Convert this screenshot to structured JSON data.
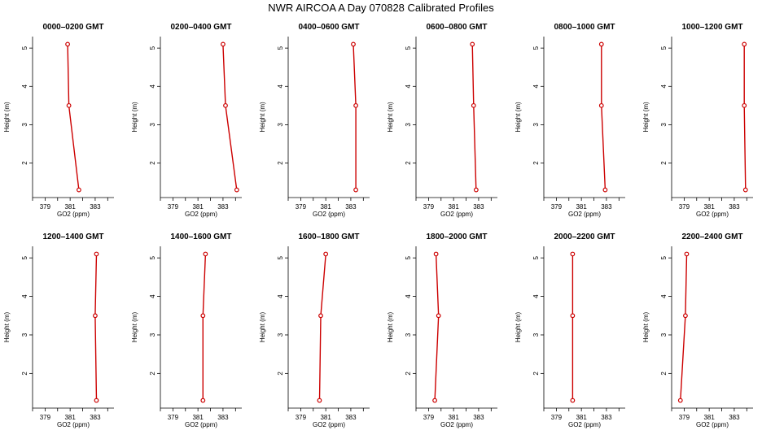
{
  "title": "NWR AIRCOA A  Day 070828  Calibrated Profiles",
  "colors": {
    "line": "#cc0000",
    "point": "#cc0000",
    "axis": "#000000"
  },
  "chart_data": [
    {
      "type": "line",
      "title": "0000–0200 GMT",
      "xlabel": "GO2 (ppm)",
      "ylabel": "Height (m)",
      "xlim": [
        378,
        384.5
      ],
      "ylim": [
        1.1,
        5.3
      ],
      "xticks": [
        379,
        381,
        383
      ],
      "yticks": [
        2,
        3,
        4,
        5
      ],
      "x": [
        380.8,
        380.9,
        381.7
      ],
      "y": [
        5.1,
        3.5,
        1.3
      ]
    },
    {
      "type": "line",
      "title": "0200–0400 GMT",
      "xlabel": "GO2 (ppm)",
      "ylabel": "Height (m)",
      "xlim": [
        378,
        384.5
      ],
      "ylim": [
        1.1,
        5.3
      ],
      "xticks": [
        379,
        381,
        383
      ],
      "yticks": [
        2,
        3,
        4,
        5
      ],
      "x": [
        383.0,
        383.2,
        384.1
      ],
      "y": [
        5.1,
        3.5,
        1.3
      ]
    },
    {
      "type": "line",
      "title": "0400–0600 GMT",
      "xlabel": "GO2 (ppm)",
      "ylabel": "Height (m)",
      "xlim": [
        378,
        384.5
      ],
      "ylim": [
        1.1,
        5.3
      ],
      "xticks": [
        379,
        381,
        383
      ],
      "yticks": [
        2,
        3,
        4,
        5
      ],
      "x": [
        383.2,
        383.4,
        383.4
      ],
      "y": [
        5.1,
        3.5,
        1.3
      ]
    },
    {
      "type": "line",
      "title": "0600–0800 GMT",
      "xlabel": "GO2 (ppm)",
      "ylabel": "Height (m)",
      "xlim": [
        378,
        384.5
      ],
      "ylim": [
        1.1,
        5.3
      ],
      "xticks": [
        379,
        381,
        383
      ],
      "yticks": [
        2,
        3,
        4,
        5
      ],
      "x": [
        382.5,
        382.6,
        382.8
      ],
      "y": [
        5.1,
        3.5,
        1.3
      ]
    },
    {
      "type": "line",
      "title": "0800–1000 GMT",
      "xlabel": "GO2 (ppm)",
      "ylabel": "Height (m)",
      "xlim": [
        378,
        384.5
      ],
      "ylim": [
        1.1,
        5.3
      ],
      "xticks": [
        379,
        381,
        383
      ],
      "yticks": [
        2,
        3,
        4,
        5
      ],
      "x": [
        382.6,
        382.6,
        382.9
      ],
      "y": [
        5.1,
        3.5,
        1.3
      ]
    },
    {
      "type": "line",
      "title": "1000–1200 GMT",
      "xlabel": "GO2 (ppm)",
      "ylabel": "Height (m)",
      "xlim": [
        378,
        384.5
      ],
      "ylim": [
        1.1,
        5.3
      ],
      "xticks": [
        379,
        381,
        383
      ],
      "yticks": [
        2,
        3,
        4,
        5
      ],
      "x": [
        383.8,
        383.8,
        383.9
      ],
      "y": [
        5.1,
        3.5,
        1.3
      ]
    },
    {
      "type": "line",
      "title": "1200–1400 GMT",
      "xlabel": "GO2 (ppm)",
      "ylabel": "Height (m)",
      "xlim": [
        378,
        384.5
      ],
      "ylim": [
        1.1,
        5.3
      ],
      "xticks": [
        379,
        381,
        383
      ],
      "yticks": [
        2,
        3,
        4,
        5
      ],
      "x": [
        383.1,
        383.0,
        383.1
      ],
      "y": [
        5.1,
        3.5,
        1.3
      ]
    },
    {
      "type": "line",
      "title": "1400–1600 GMT",
      "xlabel": "GO2 (ppm)",
      "ylabel": "Height (m)",
      "xlim": [
        378,
        384.5
      ],
      "ylim": [
        1.1,
        5.3
      ],
      "xticks": [
        379,
        381,
        383
      ],
      "yticks": [
        2,
        3,
        4,
        5
      ],
      "x": [
        381.6,
        381.4,
        381.4
      ],
      "y": [
        5.1,
        3.5,
        1.3
      ]
    },
    {
      "type": "line",
      "title": "1600–1800 GMT",
      "xlabel": "GO2 (ppm)",
      "ylabel": "Height (m)",
      "xlim": [
        378,
        384.5
      ],
      "ylim": [
        1.1,
        5.3
      ],
      "xticks": [
        379,
        381,
        383
      ],
      "yticks": [
        2,
        3,
        4,
        5
      ],
      "x": [
        381.0,
        380.6,
        380.5
      ],
      "y": [
        5.1,
        3.5,
        1.3
      ]
    },
    {
      "type": "line",
      "title": "1800–2000 GMT",
      "xlabel": "GO2 (ppm)",
      "ylabel": "Height (m)",
      "xlim": [
        378,
        384.5
      ],
      "ylim": [
        1.1,
        5.3
      ],
      "xticks": [
        379,
        381,
        383
      ],
      "yticks": [
        2,
        3,
        4,
        5
      ],
      "x": [
        379.6,
        379.8,
        379.5
      ],
      "y": [
        5.1,
        3.5,
        1.3
      ]
    },
    {
      "type": "line",
      "title": "2000–2200 GMT",
      "xlabel": "GO2 (ppm)",
      "ylabel": "Height (m)",
      "xlim": [
        378,
        384.5
      ],
      "ylim": [
        1.1,
        5.3
      ],
      "xticks": [
        379,
        381,
        383
      ],
      "yticks": [
        2,
        3,
        4,
        5
      ],
      "x": [
        380.3,
        380.3,
        380.3
      ],
      "y": [
        5.1,
        3.5,
        1.3
      ]
    },
    {
      "type": "line",
      "title": "2200–2400 GMT",
      "xlabel": "GO2 (ppm)",
      "ylabel": "Height (m)",
      "xlim": [
        378,
        384.5
      ],
      "ylim": [
        1.1,
        5.3
      ],
      "xticks": [
        379,
        381,
        383
      ],
      "yticks": [
        2,
        3,
        4,
        5
      ],
      "x": [
        379.2,
        379.1,
        378.7
      ],
      "y": [
        5.1,
        3.5,
        1.3
      ]
    }
  ]
}
